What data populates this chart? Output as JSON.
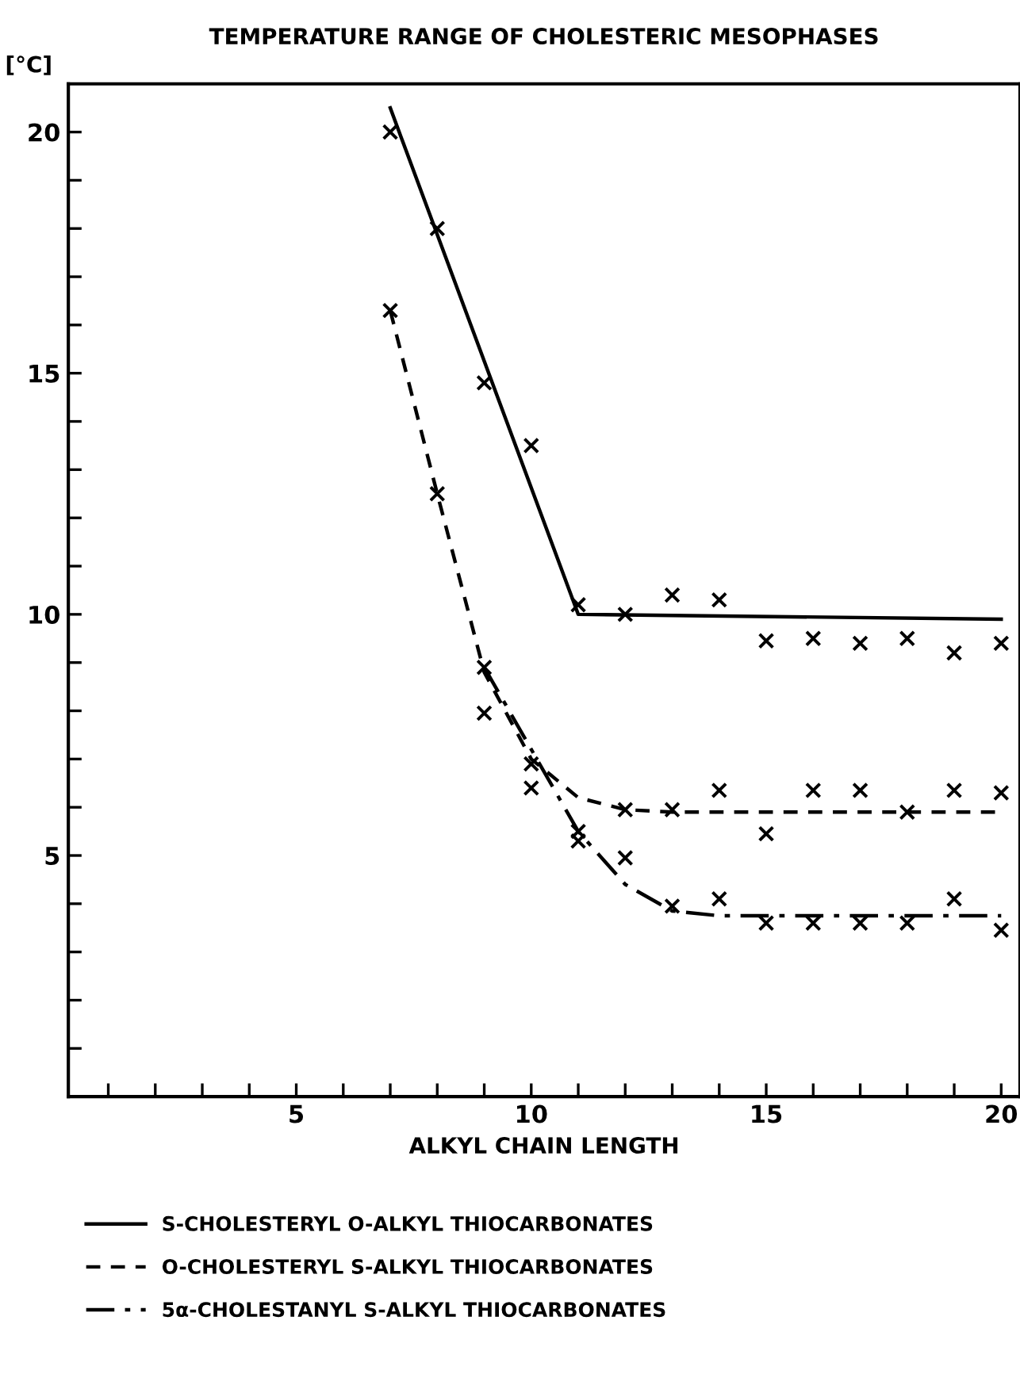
{
  "chart_data": {
    "type": "line",
    "title": "TEMPERATURE RANGE OF CHOLESTERIC MESOPHASES",
    "xlabel": "ALKYL CHAIN LENGTH",
    "ylabel": "[°C]",
    "xlim": [
      0.15,
      20.4
    ],
    "ylim": [
      0,
      21
    ],
    "xticks": [
      {
        "value": 1,
        "label": null
      },
      {
        "value": 2,
        "label": null
      },
      {
        "value": 3,
        "label": null
      },
      {
        "value": 4,
        "label": null
      },
      5,
      {
        "value": 6,
        "label": null
      },
      {
        "value": 7,
        "label": null
      },
      {
        "value": 8,
        "label": null
      },
      {
        "value": 9,
        "label": null
      },
      10,
      {
        "value": 11,
        "label": null
      },
      {
        "value": 12,
        "label": null
      },
      {
        "value": 13,
        "label": null
      },
      {
        "value": 14,
        "label": null
      },
      15,
      {
        "value": 16,
        "label": null
      },
      {
        "value": 17,
        "label": null
      },
      {
        "value": 18,
        "label": null
      },
      {
        "value": 19,
        "label": null
      },
      20
    ],
    "yticks": [
      {
        "value": 1,
        "label": null
      },
      {
        "value": 2,
        "label": null
      },
      {
        "value": 3,
        "label": null
      },
      {
        "value": 4,
        "label": null
      },
      5,
      {
        "value": 6,
        "label": null
      },
      {
        "value": 7,
        "label": null
      },
      {
        "value": 8,
        "label": null
      },
      {
        "value": 9,
        "label": null
      },
      10,
      {
        "value": 11,
        "label": null
      },
      {
        "value": 12,
        "label": null
      },
      {
        "value": 13,
        "label": null
      },
      {
        "value": 14,
        "label": null
      },
      15,
      {
        "value": 16,
        "label": null
      },
      {
        "value": 17,
        "label": null
      },
      {
        "value": 18,
        "label": null
      },
      {
        "value": 19,
        "label": null
      },
      20
    ],
    "grid": false,
    "legend": "bottom",
    "series": [
      {
        "name": "S-CHOLESTERYL O-ALKYL THIOCARBONATES",
        "color": "#000000",
        "line_style": "solid",
        "marker": "none",
        "x": [
          7,
          11,
          20
        ],
        "values": [
          20.5,
          10.0,
          9.9
        ]
      },
      {
        "name": "O-CHOLESTERYL S-ALKYL THIOCARBONATES",
        "color": "#000000",
        "line_style": "dashed",
        "marker": "none",
        "x": [
          7,
          8,
          9,
          10,
          11,
          12,
          13,
          20
        ],
        "values": [
          16.3,
          12.5,
          8.8,
          7.0,
          6.2,
          5.95,
          5.9,
          5.9
        ]
      },
      {
        "name": "5α-CHOLESTANYL S-ALKYL THIOCARBONATES",
        "color": "#000000",
        "line_style": "dashdot",
        "marker": "none",
        "x": [
          9,
          10,
          11,
          12,
          13,
          14,
          20
        ],
        "values": [
          8.9,
          7.2,
          5.5,
          4.4,
          3.85,
          3.75,
          3.75
        ]
      },
      {
        "type": "scatter",
        "color": "#000000",
        "marker": "cross",
        "x": [
          7,
          8,
          9,
          10,
          11,
          12,
          13,
          14,
          15,
          16,
          17,
          18,
          19,
          20
        ],
        "values": [
          20.0,
          18.0,
          14.8,
          13.5,
          10.2,
          10.0,
          10.4,
          10.3,
          9.45,
          9.5,
          9.4,
          9.5,
          9.2,
          9.4
        ]
      },
      {
        "type": "scatter",
        "color": "#000000",
        "marker": "cross",
        "x": [
          7,
          8,
          9,
          10,
          11,
          12,
          13,
          14,
          15,
          16,
          17,
          18,
          19,
          20
        ],
        "values": [
          16.3,
          12.5,
          7.95,
          6.4,
          5.5,
          5.95,
          5.95,
          6.35,
          5.45,
          6.35,
          6.35,
          5.9,
          6.35,
          6.3
        ]
      },
      {
        "type": "scatter",
        "color": "#000000",
        "marker": "cross",
        "x": [
          9,
          10,
          11,
          12,
          13,
          14,
          15,
          16,
          17,
          18,
          19,
          20
        ],
        "values": [
          8.9,
          6.9,
          5.3,
          4.95,
          3.95,
          4.1,
          3.6,
          3.6,
          3.6,
          3.6,
          4.1,
          3.45
        ]
      }
    ]
  }
}
